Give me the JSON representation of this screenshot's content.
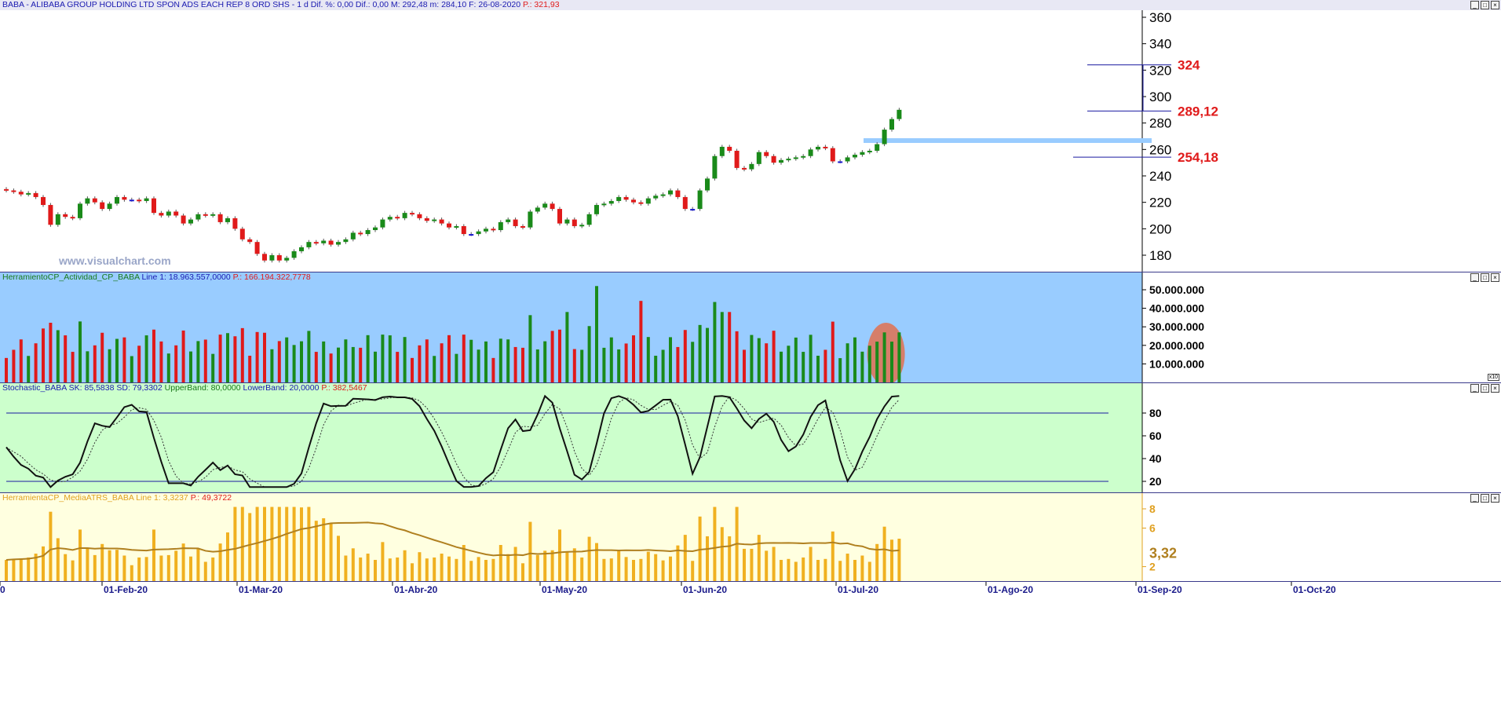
{
  "colors": {
    "up": "#1a8a1a",
    "down": "#e01a1a",
    "doji": "#1a1ad0",
    "price_bg": "#ffffff",
    "activity_bg": "#99ccff",
    "stoch_bg": "#ccffcc",
    "atr_bg": "#ffffe0",
    "band": "#1a1aa0",
    "resistance": "#99ccff",
    "annotation": "#e01a1a",
    "atr_bar": "#f0b020",
    "atr_avg": "#b08020",
    "highlight": "#e07050"
  },
  "price_pane": {
    "title": {
      "symbol": "BABA - ALIBABA GROUP HOLDING LTD SPON ADS EACH REP 8 ORD SHS -  1 d",
      "dif_pct": "Dif. %: 0,00",
      "dif": "Dif.: 0,00",
      "high": "M: 292,48",
      "low": "m: 284,10",
      "date": "F: 26-08-2020",
      "p": "P.: 321,93"
    },
    "watermark": "www.visualchart.com",
    "y_ticks": [
      "360",
      "340",
      "320",
      "300",
      "280",
      "260",
      "240",
      "220",
      "200",
      "180"
    ],
    "annotations": {
      "target": "324",
      "current": "289,12",
      "support": "254,18"
    }
  },
  "activity_pane": {
    "title": {
      "name": "HerramientoCP_Actividad_CP_BABA",
      "line": "Line 1: 18.963.557,0000",
      "p": "P.: 166.194.322,7778"
    },
    "y_ticks": [
      "50.000.000",
      "40.000.000",
      "30.000.000",
      "20.000.000",
      "10.000.000"
    ],
    "scale_note": "x10"
  },
  "stoch_pane": {
    "title": {
      "name": "Stochastic_BABA",
      "sk": "SK: 85,5838",
      "sd": "SD: 79,3302",
      "upper": "UpperBand: 80,0000",
      "lower": "LowerBand: 20,0000",
      "p": "P.: 382,5467"
    },
    "y_ticks": [
      "80",
      "60",
      "40",
      "20"
    ]
  },
  "atr_pane": {
    "title": {
      "name": "HerramientaCP_MediaATRS_BABA",
      "line": "Line 1: 3,3237",
      "p": "P.: 49,3722"
    },
    "y_ticks": [
      "8",
      "6",
      "2"
    ],
    "last_value": "3,32"
  },
  "x_axis": {
    "labels": [
      "0",
      "01-Feb-20",
      "01-Mar-20",
      "01-Abr-20",
      "01-May-20",
      "01-Jun-20",
      "01-Jul-20",
      "01-Ago-20",
      "01-Sep-20",
      "01-Oct-20"
    ]
  },
  "chart_data": [
    {
      "type": "candlestick",
      "title": "BABA - ALIBABA GROUP HOLDING LTD SPON ADS EACH REP 8 ORD SHS -  1 d",
      "ylim": [
        165,
        365
      ],
      "close": [
        229,
        228,
        226,
        227,
        224,
        218,
        203,
        211,
        209,
        208,
        219,
        223,
        220,
        215,
        219,
        224,
        222,
        222,
        221,
        223,
        212,
        210,
        213,
        210,
        204,
        207,
        211,
        210,
        211,
        205,
        208,
        200,
        192,
        190,
        181,
        176,
        180,
        176,
        178,
        183,
        186,
        190,
        189,
        191,
        188,
        190,
        192,
        197,
        196,
        199,
        201,
        207,
        209,
        208,
        212,
        211,
        208,
        206,
        207,
        204,
        201,
        202,
        196,
        196,
        198,
        200,
        199,
        205,
        207,
        202,
        201,
        213,
        216,
        219,
        215,
        204,
        207,
        202,
        203,
        211,
        218,
        219,
        221,
        224,
        222,
        220,
        219,
        223,
        225,
        226,
        229,
        224,
        215,
        215,
        229,
        238,
        255,
        262,
        259,
        246,
        245,
        249,
        258,
        255,
        250,
        252,
        253,
        254,
        255,
        260,
        262,
        261,
        251,
        251,
        254,
        256,
        258,
        259,
        264,
        275,
        283,
        290
      ]
    },
    {
      "type": "bar",
      "title": "HerramientoCP_Actividad_CP_BABA"
    },
    {
      "type": "line",
      "title": "Stochastic_BABA",
      "series": [
        {
          "name": "SK"
        },
        {
          "name": "SD"
        }
      ],
      "bands": [
        80,
        20
      ]
    },
    {
      "type": "bar",
      "title": "HerramientaCP_MediaATRS_BABA"
    }
  ]
}
